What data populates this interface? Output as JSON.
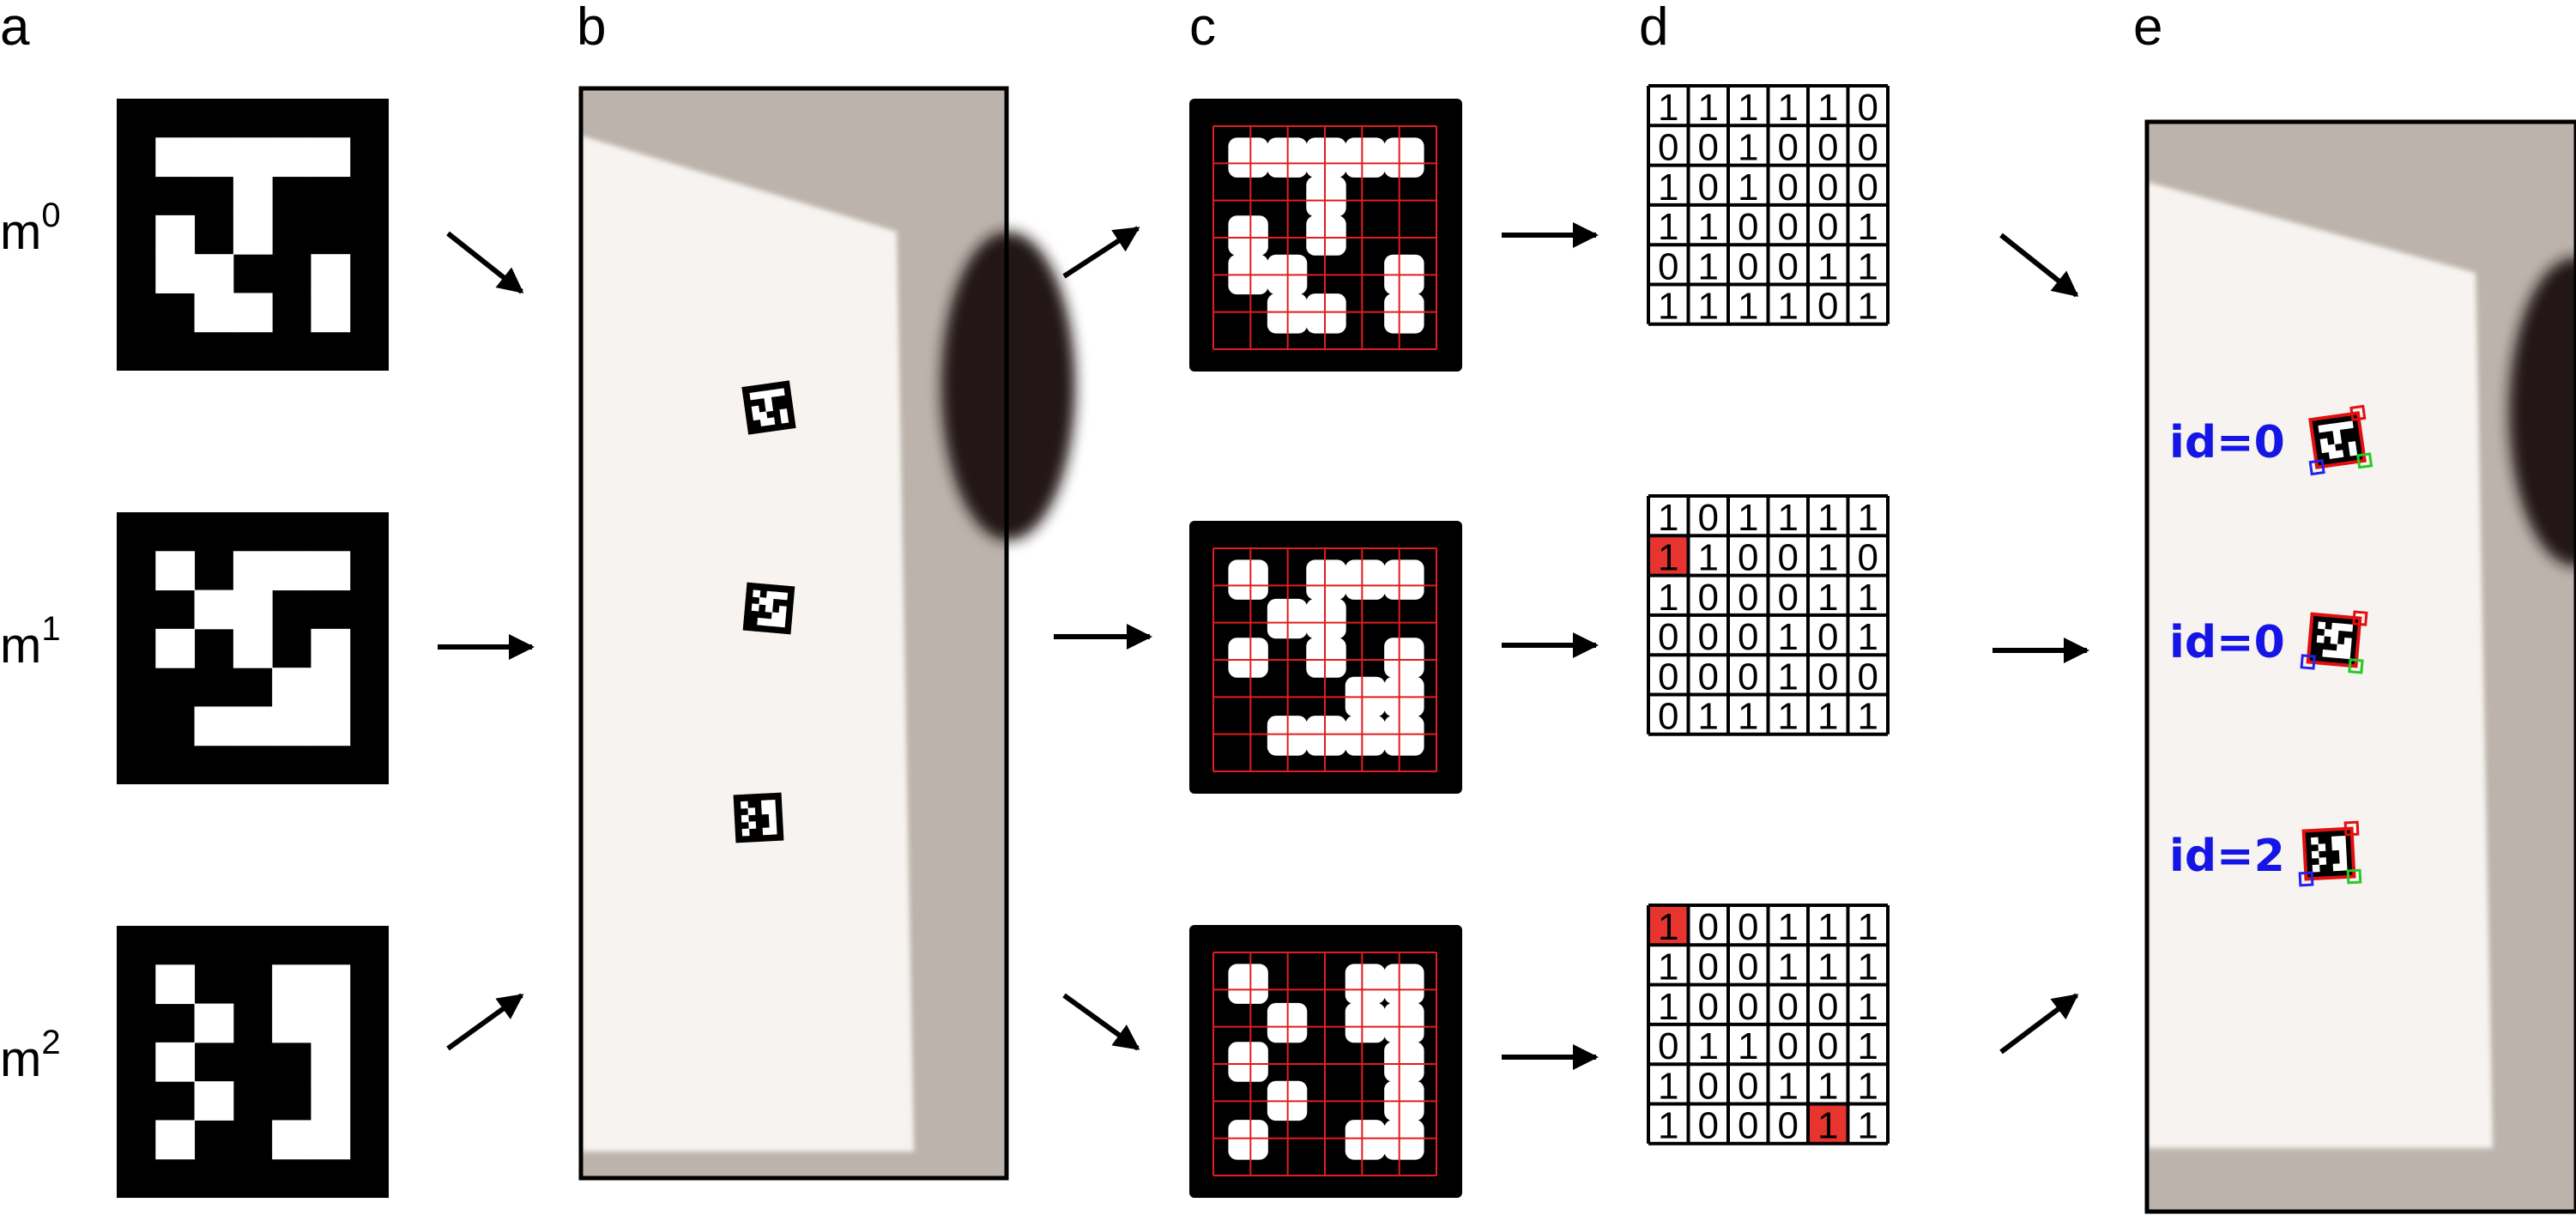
{
  "panel_labels": [
    "a",
    "b",
    "c",
    "d",
    "e"
  ],
  "markers": [
    {
      "name": "m",
      "sup": "0",
      "id": "0"
    },
    {
      "name": "m",
      "sup": "1",
      "id": "0"
    },
    {
      "name": "m",
      "sup": "2",
      "id": "2"
    }
  ],
  "marker_patterns": [
    [
      [
        1,
        1,
        1,
        1,
        1
      ],
      [
        0,
        0,
        1,
        0,
        0
      ],
      [
        1,
        0,
        1,
        0,
        0
      ],
      [
        1,
        1,
        0,
        0,
        1
      ],
      [
        0,
        1,
        1,
        0,
        1
      ]
    ],
    [
      [
        1,
        0,
        1,
        1,
        1
      ],
      [
        0,
        1,
        1,
        0,
        0
      ],
      [
        1,
        0,
        1,
        0,
        1
      ],
      [
        0,
        0,
        0,
        1,
        1
      ],
      [
        0,
        1,
        1,
        1,
        1
      ]
    ],
    [
      [
        1,
        0,
        0,
        1,
        1
      ],
      [
        0,
        1,
        0,
        1,
        1
      ],
      [
        1,
        0,
        0,
        0,
        1
      ],
      [
        0,
        1,
        0,
        0,
        1
      ],
      [
        1,
        0,
        0,
        1,
        1
      ]
    ]
  ],
  "decoded_matrices": [
    {
      "bits": [
        [
          "1",
          "1",
          "1",
          "1",
          "1",
          "0"
        ],
        [
          "0",
          "0",
          "1",
          "0",
          "0",
          "0"
        ],
        [
          "1",
          "0",
          "1",
          "0",
          "0",
          "0"
        ],
        [
          "1",
          "1",
          "0",
          "0",
          "0",
          "1"
        ],
        [
          "0",
          "1",
          "0",
          "0",
          "1",
          "1"
        ],
        [
          "1",
          "1",
          "1",
          "1",
          "0",
          "1"
        ]
      ],
      "errors": []
    },
    {
      "bits": [
        [
          "1",
          "0",
          "1",
          "1",
          "1",
          "1"
        ],
        [
          "1",
          "1",
          "0",
          "0",
          "1",
          "0"
        ],
        [
          "1",
          "0",
          "0",
          "0",
          "1",
          "1"
        ],
        [
          "0",
          "0",
          "0",
          "1",
          "0",
          "1"
        ],
        [
          "0",
          "0",
          "0",
          "1",
          "0",
          "0"
        ],
        [
          "0",
          "1",
          "1",
          "1",
          "1",
          "1"
        ]
      ],
      "errors": [
        [
          1,
          0
        ]
      ]
    },
    {
      "bits": [
        [
          "1",
          "0",
          "0",
          "1",
          "1",
          "1"
        ],
        [
          "1",
          "0",
          "0",
          "1",
          "1",
          "1"
        ],
        [
          "1",
          "0",
          "0",
          "0",
          "0",
          "1"
        ],
        [
          "0",
          "1",
          "1",
          "0",
          "0",
          "1"
        ],
        [
          "1",
          "0",
          "0",
          "1",
          "1",
          "1"
        ],
        [
          "1",
          "0",
          "0",
          "0",
          "1",
          "1"
        ]
      ],
      "errors": [
        [
          0,
          0
        ],
        [
          5,
          4
        ]
      ]
    }
  ],
  "detections": [
    {
      "label": "id=0"
    },
    {
      "label": "id=0"
    },
    {
      "label": "id=2"
    }
  ],
  "colors": {
    "error_cell": "#e8342f",
    "grid_line": "#e11d1d",
    "id_text": "#1515e6",
    "photo_background": "#bcb4ac",
    "paper": "#f7f3f0",
    "corner_red": "#e01010",
    "corner_green": "#22cc22",
    "corner_blue": "#2222ee"
  }
}
